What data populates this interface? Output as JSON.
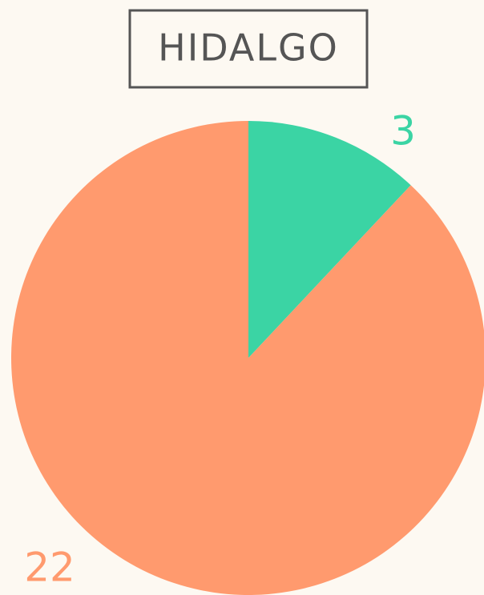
{
  "chart_data": {
    "type": "pie",
    "title": "HIDALGO",
    "values": [
      3,
      22
    ],
    "colors": [
      "#3bd4a4",
      "#ff9a6e"
    ]
  }
}
